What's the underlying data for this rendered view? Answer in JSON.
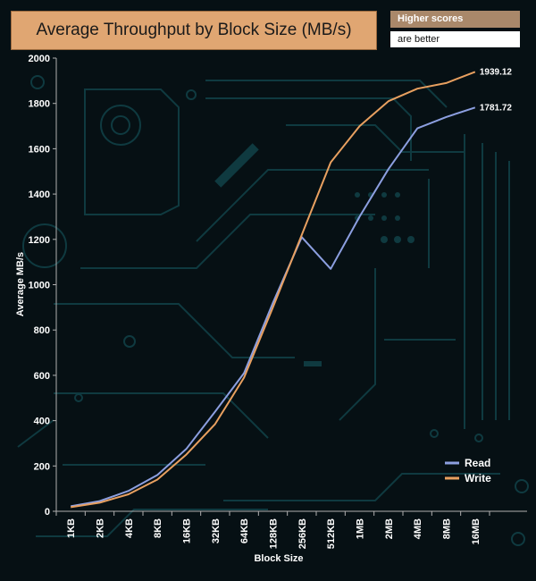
{
  "banner": {
    "note_line1": "Higher scores",
    "note_line2": "are better"
  },
  "colors": {
    "read": "#8c9fe0",
    "write": "#e8a060",
    "axis": "#b0b0b0",
    "title_bg": "#e0a672",
    "background": "#061014",
    "circuit": "#0f3a40"
  },
  "chart_data": {
    "type": "line",
    "title": "Average Throughput by Block Size (MB/s)",
    "xlabel": "Block Size",
    "ylabel": "Average MB/s",
    "ylim": [
      0,
      2000
    ],
    "yticks": [
      0,
      200,
      400,
      600,
      800,
      1000,
      1200,
      1400,
      1600,
      1800,
      2000
    ],
    "categories": [
      "1KB",
      "2KB",
      "4KB",
      "8KB",
      "16KB",
      "32KB",
      "64KB",
      "128KB",
      "256KB",
      "512KB",
      "1MB",
      "2MB",
      "4MB",
      "8MB",
      "16MB"
    ],
    "legend_position": "bottom-right",
    "series": [
      {
        "name": "Read",
        "values": [
          22,
          45,
          90,
          160,
          275,
          440,
          610,
          920,
          1210,
          1070,
          1300,
          1510,
          1690,
          1740,
          1781.72
        ],
        "end_label": "1781.72"
      },
      {
        "name": "Write",
        "values": [
          18,
          38,
          75,
          140,
          250,
          385,
          590,
          900,
          1220,
          1540,
          1700,
          1810,
          1865,
          1890,
          1939.12
        ],
        "end_label": "1939.12"
      }
    ]
  }
}
